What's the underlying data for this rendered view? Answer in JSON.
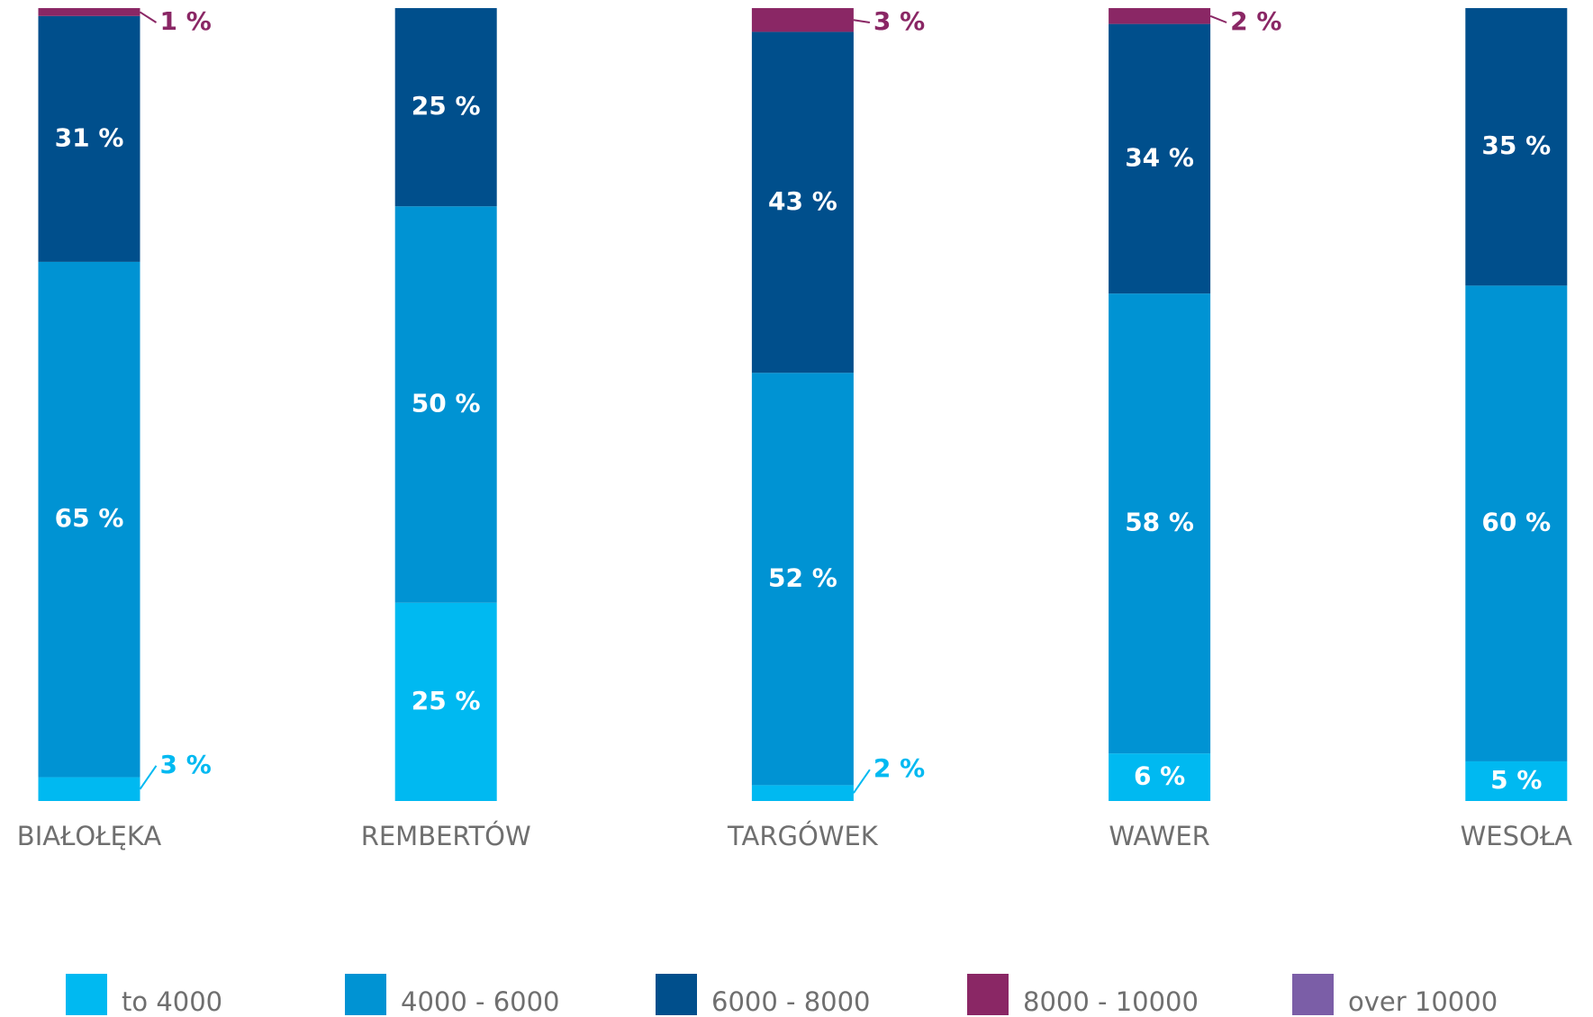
{
  "chart_data": {
    "type": "stacked-bar",
    "categories": [
      "BIAŁOŁĘKA",
      "REMBERTÓW",
      "TARGÓWEK",
      "WAWER",
      "WESOŁA"
    ],
    "ylim": [
      0,
      100
    ],
    "series": [
      {
        "name": "to 4000",
        "color": "#00b9f1",
        "values": [
          3,
          25,
          2,
          6,
          5
        ],
        "value_labels": [
          "3 %",
          "25 %",
          "2 %",
          "6 %",
          "5 %"
        ]
      },
      {
        "name": "4000 - 6000",
        "color": "#0093d3",
        "values": [
          65,
          50,
          52,
          58,
          60
        ],
        "value_labels": [
          "65 %",
          "50 %",
          "52 %",
          "58 %",
          "60 %"
        ]
      },
      {
        "name": "6000 - 8000",
        "color": "#004f8c",
        "values": [
          31,
          25,
          43,
          34,
          35
        ],
        "value_labels": [
          "31 %",
          "25 %",
          "43 %",
          "34 %",
          "35 %"
        ]
      },
      {
        "name": "8000 - 10000",
        "color": "#8a2765",
        "values": [
          1,
          0,
          3,
          2,
          0
        ],
        "value_labels": [
          "1 %",
          null,
          "3 %",
          "2 %",
          null
        ]
      },
      {
        "name": "over 10000",
        "color": "#7b5ea7",
        "values": [
          0,
          0,
          0,
          0,
          0
        ],
        "value_labels": [
          null,
          null,
          null,
          null,
          null
        ]
      }
    ]
  }
}
